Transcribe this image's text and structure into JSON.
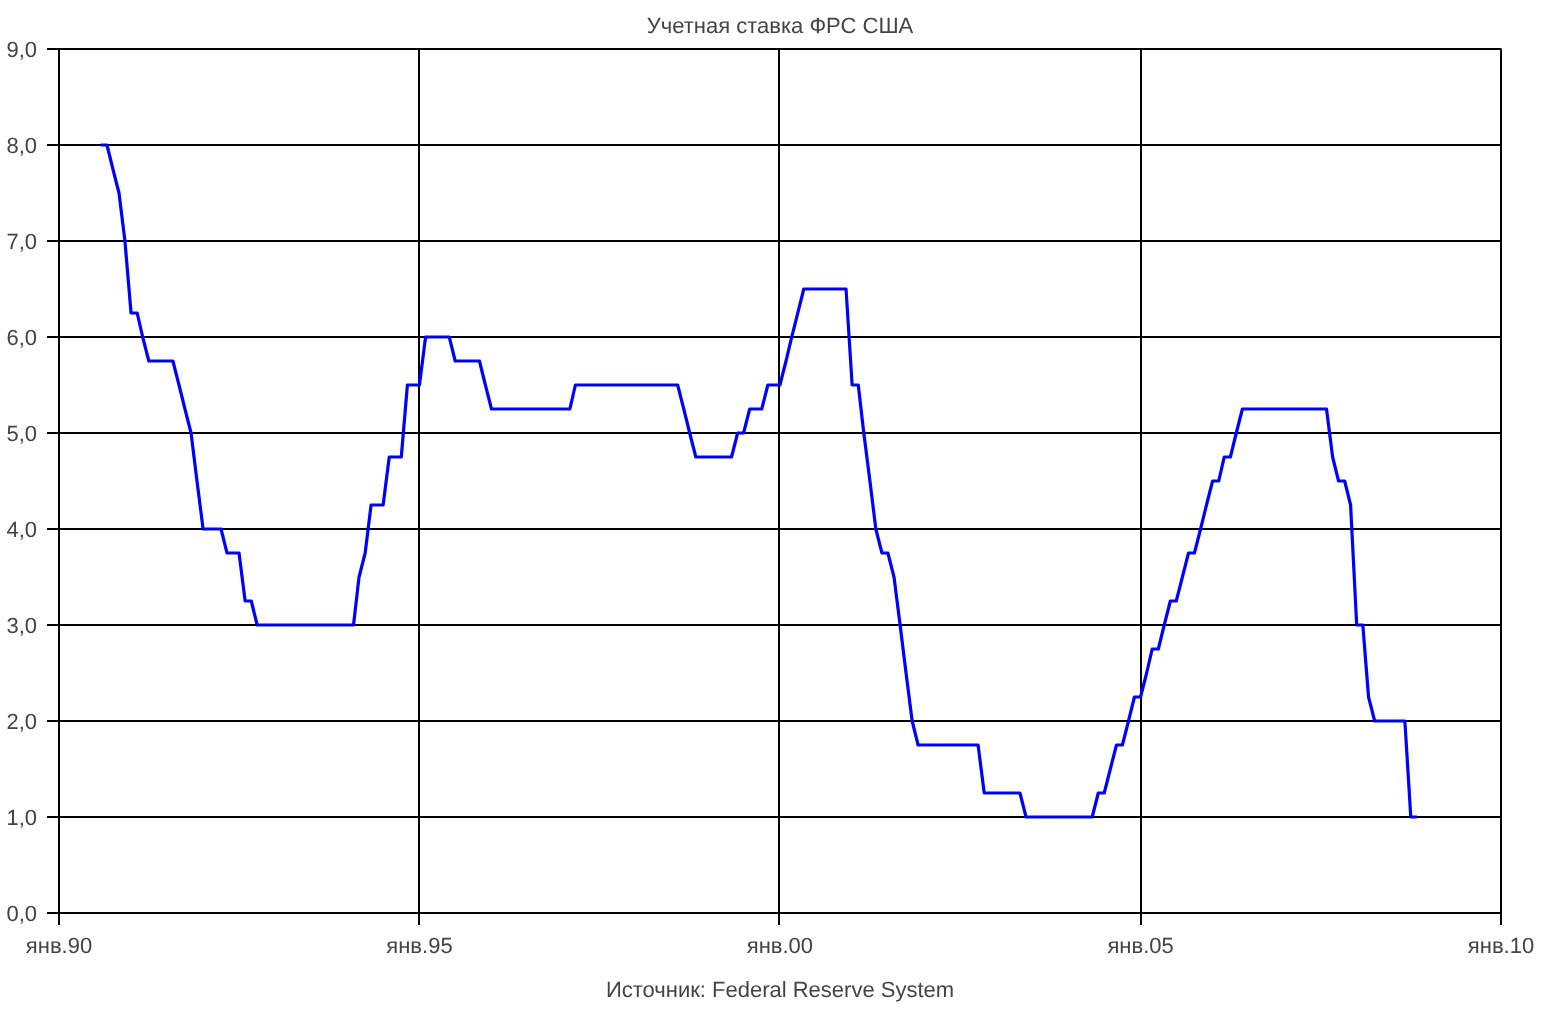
{
  "chart_data": {
    "type": "line",
    "title": "Учетная ставка ФРС США",
    "annotations": [
      "Источник: Federal Reserve System"
    ],
    "x": [
      "1990-08",
      "1990-09",
      "1990-10",
      "1990-11",
      "1990-12",
      "1991-01",
      "1991-02",
      "1991-03",
      "1991-04",
      "1991-08",
      "1991-09",
      "1991-10",
      "1991-11",
      "1991-12",
      "1992-01",
      "1992-04",
      "1992-05",
      "1992-07",
      "1992-08",
      "1992-09",
      "1992-10",
      "1994-02",
      "1994-03",
      "1994-04",
      "1994-05",
      "1994-07",
      "1994-08",
      "1994-10",
      "1994-11",
      "1995-01",
      "1995-02",
      "1995-06",
      "1995-07",
      "1995-11",
      "1995-12",
      "1996-01",
      "1997-02",
      "1997-03",
      "1998-08",
      "1998-09",
      "1998-10",
      "1998-11",
      "1999-05",
      "1999-06",
      "1999-07",
      "1999-08",
      "1999-10",
      "1999-11",
      "2000-01",
      "2000-02",
      "2000-03",
      "2000-05",
      "2000-12",
      "2001-01",
      "2001-02",
      "2001-03",
      "2001-04",
      "2001-05",
      "2001-06",
      "2001-07",
      "2001-08",
      "2001-09",
      "2001-10",
      "2001-11",
      "2001-12",
      "2002-10",
      "2002-11",
      "2003-05",
      "2003-06",
      "2004-05",
      "2004-06",
      "2004-07",
      "2004-08",
      "2004-09",
      "2004-10",
      "2004-11",
      "2004-12",
      "2005-01",
      "2005-02",
      "2005-03",
      "2005-04",
      "2005-05",
      "2005-06",
      "2005-07",
      "2005-08",
      "2005-09",
      "2005-10",
      "2005-11",
      "2005-12",
      "2006-01",
      "2006-02",
      "2006-03",
      "2006-04",
      "2006-05",
      "2006-06",
      "2007-08",
      "2007-09",
      "2007-10",
      "2007-11",
      "2007-12",
      "2008-01",
      "2008-02",
      "2008-03",
      "2008-04",
      "2008-09",
      "2008-10",
      "2008-11"
    ],
    "series": [
      {
        "color": "#0000ff",
        "values": [
          8.0,
          8.0,
          7.75,
          7.5,
          7.0,
          6.25,
          6.25,
          6.0,
          5.75,
          5.75,
          5.5,
          5.25,
          5.0,
          4.5,
          4.0,
          4.0,
          3.75,
          3.75,
          3.25,
          3.25,
          3.0,
          3.0,
          3.5,
          3.75,
          4.25,
          4.25,
          4.75,
          4.75,
          5.5,
          5.5,
          6.0,
          6.0,
          5.75,
          5.75,
          5.5,
          5.25,
          5.25,
          5.5,
          5.5,
          5.25,
          5.0,
          4.75,
          4.75,
          5.0,
          5.0,
          5.25,
          5.25,
          5.5,
          5.5,
          5.75,
          6.0,
          6.5,
          6.5,
          5.5,
          5.5,
          5.0,
          4.5,
          4.0,
          3.75,
          3.75,
          3.5,
          3.0,
          2.5,
          2.0,
          1.75,
          1.75,
          1.25,
          1.25,
          1.0,
          1.0,
          1.25,
          1.25,
          1.5,
          1.75,
          1.75,
          2.0,
          2.25,
          2.25,
          2.5,
          2.75,
          2.75,
          3.0,
          3.25,
          3.25,
          3.5,
          3.75,
          3.75,
          4.0,
          4.25,
          4.5,
          4.5,
          4.75,
          4.75,
          5.0,
          5.25,
          5.25,
          4.75,
          4.5,
          4.5,
          4.25,
          3.0,
          3.0,
          2.25,
          2.0,
          2.0,
          1.0,
          1.0
        ]
      }
    ],
    "xlim": [
      "1990-01",
      "2010-01"
    ],
    "xticks": [
      {
        "value": "1990-01",
        "label": "янв.90"
      },
      {
        "value": "1995-01",
        "label": "янв.95"
      },
      {
        "value": "2000-01",
        "label": "янв.00"
      },
      {
        "value": "2005-01",
        "label": "янв.05"
      },
      {
        "value": "2010-01",
        "label": "янв.10"
      }
    ],
    "ylim": [
      0,
      9
    ],
    "yticks": [
      {
        "value": 0,
        "label": "0,0"
      },
      {
        "value": 1,
        "label": "1,0"
      },
      {
        "value": 2,
        "label": "2,0"
      },
      {
        "value": 3,
        "label": "3,0"
      },
      {
        "value": 4,
        "label": "4,0"
      },
      {
        "value": 5,
        "label": "5,0"
      },
      {
        "value": 6,
        "label": "6,0"
      },
      {
        "value": 7,
        "label": "7,0"
      },
      {
        "value": 8,
        "label": "8,0"
      },
      {
        "value": 9,
        "label": "9,0"
      }
    ],
    "grid": true,
    "marker": "none",
    "line_style": "solid"
  }
}
